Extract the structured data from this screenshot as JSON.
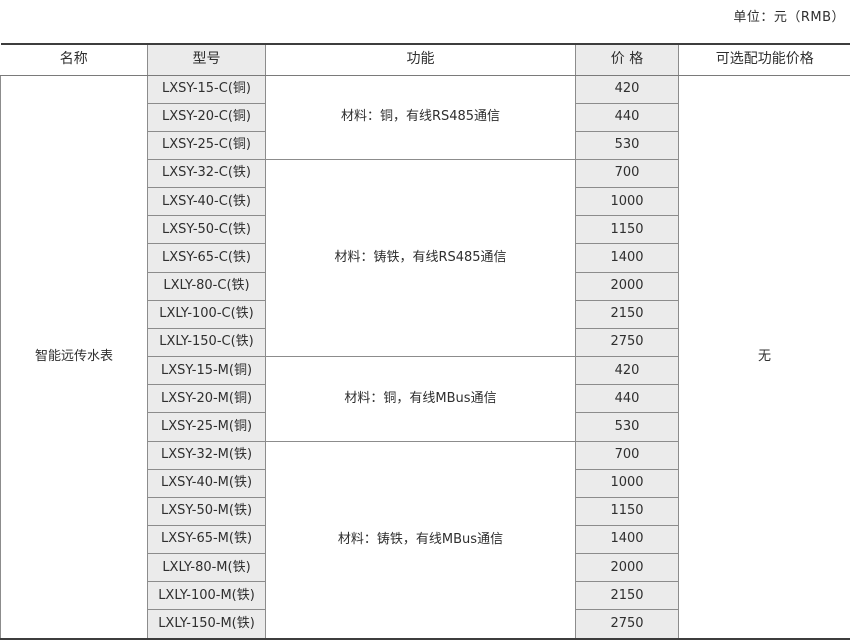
{
  "unit_label": "单位：元（RMB）",
  "colors": {
    "cell_fill": "#ebebeb",
    "border": "#8c8c8c",
    "frame": "#3d3d3d",
    "text": "#2f2f2f",
    "background": "#ffffff"
  },
  "table": {
    "headers": [
      "名称",
      "型号",
      "功能",
      "价  格",
      "可选配功能价格"
    ],
    "product_name": "智能远传水表",
    "optional_price": "无",
    "groups": [
      {
        "function": "材料：铜，有线RS485通信",
        "rows": [
          {
            "model": "LXSY-15-C(铜)",
            "price": "420"
          },
          {
            "model": "LXSY-20-C(铜)",
            "price": "440"
          },
          {
            "model": "LXSY-25-C(铜)",
            "price": "530"
          }
        ]
      },
      {
        "function": "材料：铸铁，有线RS485通信",
        "rows": [
          {
            "model": "LXSY-32-C(铁)",
            "price": "700"
          },
          {
            "model": "LXSY-40-C(铁)",
            "price": "1000"
          },
          {
            "model": "LXSY-50-C(铁)",
            "price": "1150"
          },
          {
            "model": "LXSY-65-C(铁)",
            "price": "1400"
          },
          {
            "model": "LXLY-80-C(铁)",
            "price": "2000"
          },
          {
            "model": "LXLY-100-C(铁)",
            "price": "2150"
          },
          {
            "model": "LXLY-150-C(铁)",
            "price": "2750"
          }
        ]
      },
      {
        "function": "材料：铜，有线MBus通信",
        "rows": [
          {
            "model": "LXSY-15-M(铜)",
            "price": "420"
          },
          {
            "model": "LXSY-20-M(铜)",
            "price": "440"
          },
          {
            "model": "LXSY-25-M(铜)",
            "price": "530"
          }
        ]
      },
      {
        "function": "材料：铸铁，有线MBus通信",
        "rows": [
          {
            "model": "LXSY-32-M(铁)",
            "price": "700"
          },
          {
            "model": "LXSY-40-M(铁)",
            "price": "1000"
          },
          {
            "model": "LXSY-50-M(铁)",
            "price": "1150"
          },
          {
            "model": "LXSY-65-M(铁)",
            "price": "1400"
          },
          {
            "model": "LXLY-80-M(铁)",
            "price": "2000"
          },
          {
            "model": "LXLY-100-M(铁)",
            "price": "2150"
          },
          {
            "model": "LXLY-150-M(铁)",
            "price": "2750"
          }
        ]
      }
    ]
  }
}
